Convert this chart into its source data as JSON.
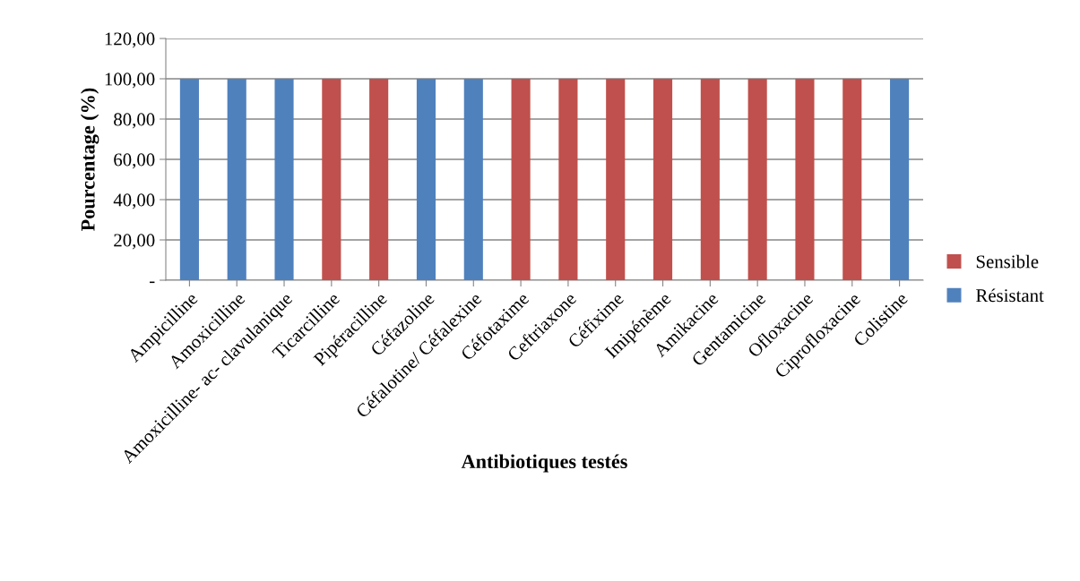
{
  "chart_data": {
    "type": "bar",
    "stacked": true,
    "xlabel": "Antibiotiques testés",
    "ylabel": "Pourcentage (%)",
    "categories": [
      "Ampicilline",
      "Amoxicilline",
      "Amoxicilline- ac- clavulanique",
      "Ticarcilline",
      "Pipéracilline",
      "Céfazoline",
      "Céfalotine/ Céfalexine",
      "Céfotaxime",
      "Ceftriaxone",
      "Céfixime",
      "Imipénème",
      "Amikacine",
      "Gentamicine",
      "Ofloxacine",
      "Ciprofloxacine",
      "Colistine"
    ],
    "series": [
      {
        "name": "Résistant",
        "color": "#4f81bd",
        "values": [
          100,
          100,
          100,
          0,
          0,
          100,
          100,
          0,
          0,
          0,
          0,
          0,
          0,
          0,
          0,
          100
        ]
      },
      {
        "name": "Sensible",
        "color": "#c0504d",
        "values": [
          0,
          0,
          0,
          100,
          100,
          0,
          0,
          100,
          100,
          100,
          100,
          100,
          100,
          100,
          100,
          0
        ]
      }
    ],
    "ylim": [
      0,
      120
    ],
    "yticks": [
      {
        "value": 0,
        "label": "-"
      },
      {
        "value": 20,
        "label": "20,00"
      },
      {
        "value": 40,
        "label": "40,00"
      },
      {
        "value": 60,
        "label": "60,00"
      },
      {
        "value": 80,
        "label": "80,00"
      },
      {
        "value": 100,
        "label": "100,00"
      },
      {
        "value": 120,
        "label": "120,00"
      }
    ],
    "grid": "y",
    "legend": "right"
  }
}
